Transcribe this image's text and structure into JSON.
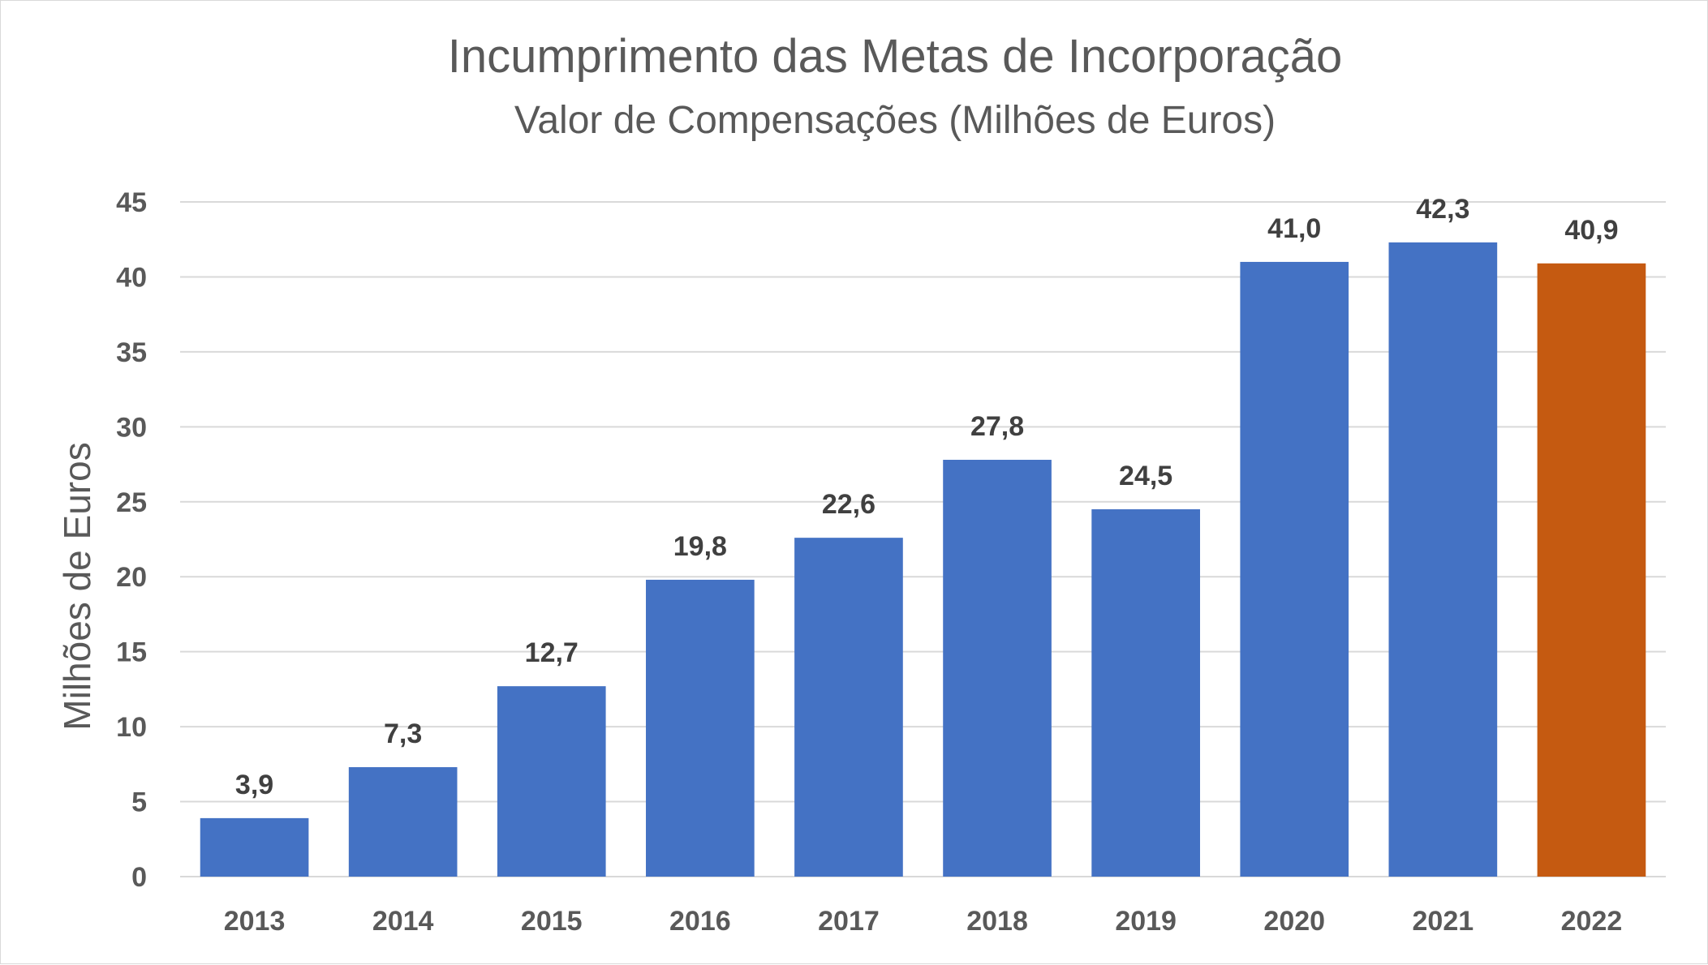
{
  "chart_data": {
    "type": "bar",
    "title": "Incumprimento das Metas de Incorporação",
    "subtitle": "Valor de Compensações (Milhões de Euros)",
    "xlabel": "",
    "ylabel": "Milhões de Euros",
    "ylim": [
      0,
      45
    ],
    "yticks": [
      0,
      5,
      10,
      15,
      20,
      25,
      30,
      35,
      40,
      45
    ],
    "grid": true,
    "legend": "none",
    "categories": [
      "2013",
      "2014",
      "2015",
      "2016",
      "2017",
      "2018",
      "2019",
      "2020",
      "2021",
      "2022"
    ],
    "values": [
      3.9,
      7.3,
      12.7,
      19.8,
      22.6,
      27.8,
      24.5,
      41.0,
      42.3,
      40.9
    ],
    "value_labels": [
      "3,9",
      "7,3",
      "12,7",
      "19,8",
      "22,6",
      "27,8",
      "24,5",
      "41,0",
      "42,3",
      "40,9"
    ],
    "colors": {
      "default": "#4472C4",
      "highlight": "#C55A11",
      "gridline": "#d9d9d9",
      "text": "#595959"
    },
    "highlight_categories": [
      "2022"
    ]
  }
}
